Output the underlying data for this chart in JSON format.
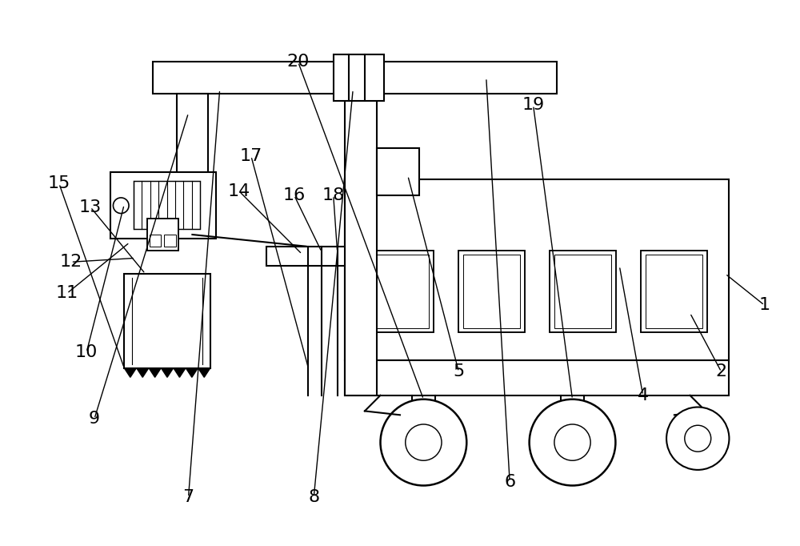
{
  "bg_color": "#ffffff",
  "line_color": "#000000",
  "lw": 1.5,
  "fig_width": 10.0,
  "fig_height": 6.82
}
